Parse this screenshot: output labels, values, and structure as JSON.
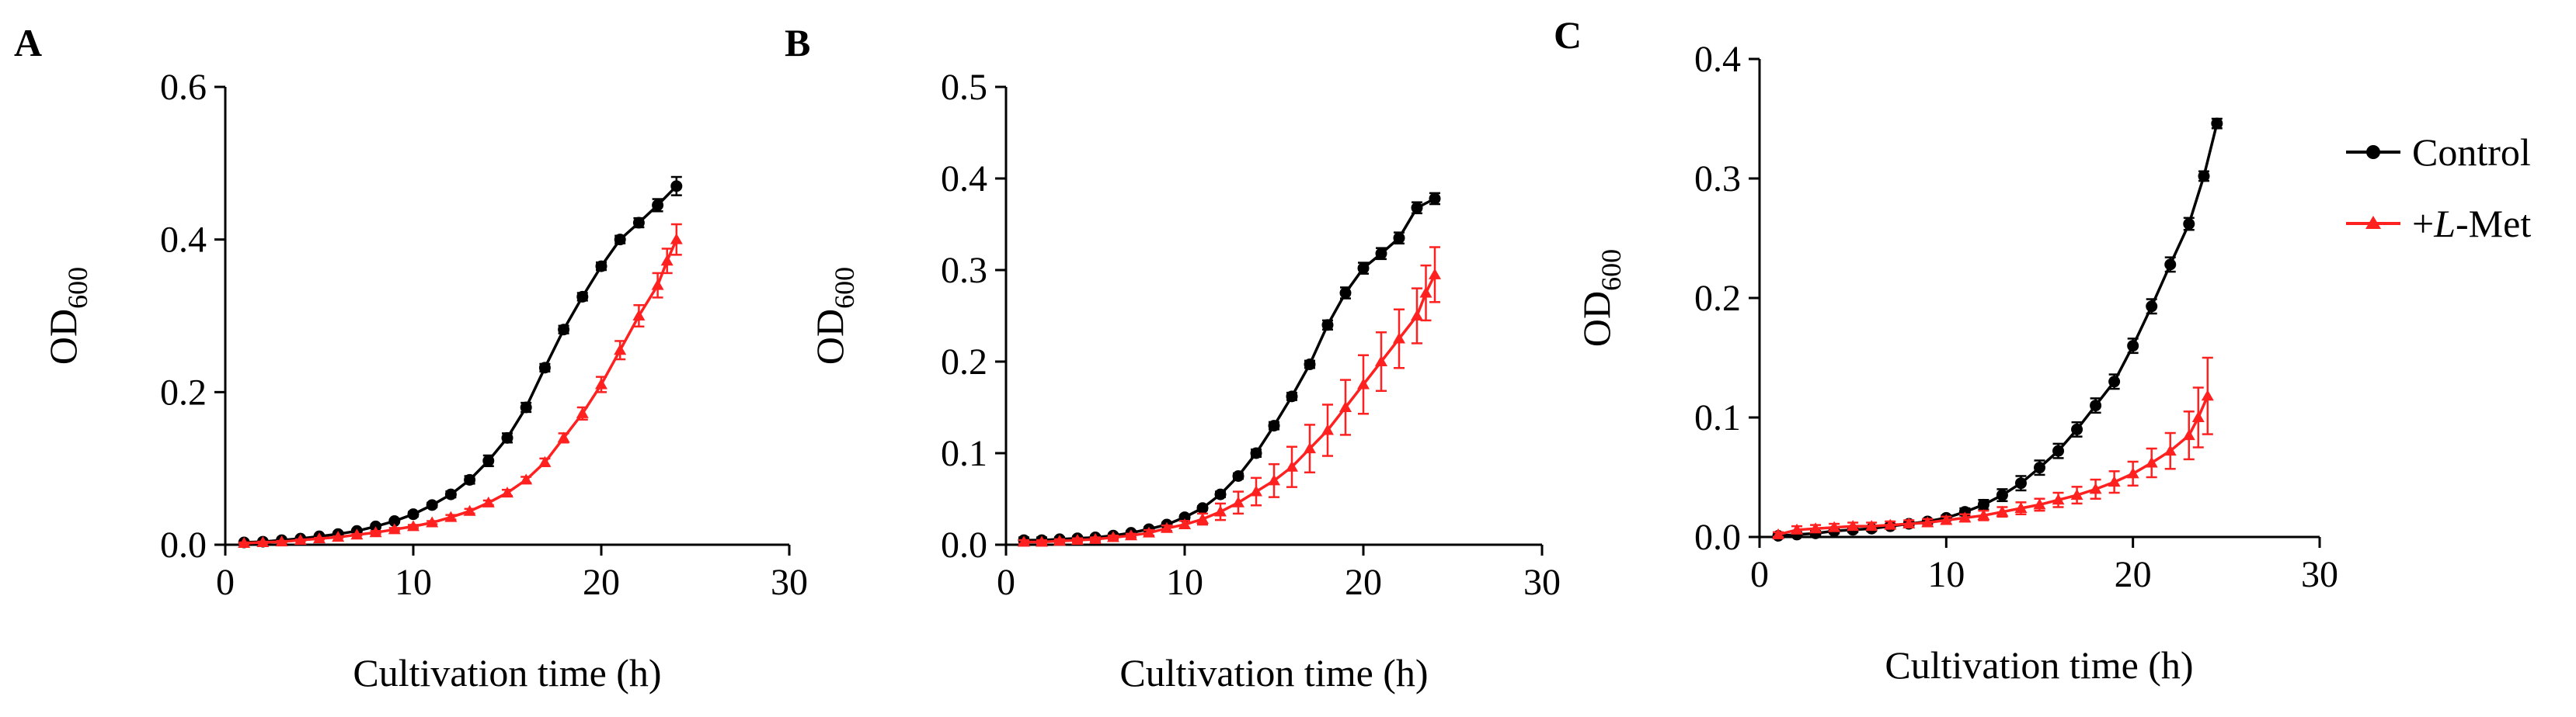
{
  "legend": {
    "items": [
      {
        "label_pre": "Control",
        "label_italic": "",
        "label_post": "",
        "color": "#000000",
        "marker": "circle"
      },
      {
        "label_pre": "+",
        "label_italic": "L",
        "label_post": "-Met",
        "color": "#ff2020",
        "marker": "triangle"
      }
    ]
  },
  "chart_data": [
    {
      "type": "line",
      "panel": "A",
      "xlabel": "Cultivation time (h)",
      "ylabel": {
        "main": "OD",
        "sub": "600"
      },
      "xlim": [
        0,
        30
      ],
      "ylim": [
        0,
        0.6
      ],
      "xticks": [
        0,
        10,
        20,
        30
      ],
      "yticks": [
        0.0,
        0.2,
        0.4,
        0.6
      ],
      "x_tick_labels": [
        "0",
        "10",
        "20",
        "30"
      ],
      "y_tick_labels": [
        "0.0",
        "0.2",
        "0.4",
        "0.6"
      ],
      "x": [
        1,
        2,
        3,
        4,
        5,
        6,
        7,
        8,
        9,
        10,
        11,
        12,
        13,
        14,
        15,
        16,
        17,
        18,
        19,
        20,
        21,
        22,
        23,
        24
      ],
      "series": [
        {
          "name": "Control",
          "values": [
            0.003,
            0.004,
            0.006,
            0.008,
            0.011,
            0.014,
            0.018,
            0.024,
            0.031,
            0.04,
            0.052,
            0.066,
            0.085,
            0.11,
            0.14,
            0.18,
            0.232,
            0.282,
            0.325,
            0.365,
            0.4,
            0.422,
            0.445,
            0.47
          ],
          "errors": [
            0.001,
            0.001,
            0.001,
            0.001,
            0.001,
            0.002,
            0.002,
            0.002,
            0.002,
            0.003,
            0.003,
            0.004,
            0.005,
            0.007,
            0.006,
            0.006,
            0.005,
            0.005,
            0.005,
            0.005,
            0.005,
            0.006,
            0.008,
            0.012
          ]
        },
        {
          "name": "+L-Met",
          "values": [
            0.002,
            0.003,
            0.004,
            0.006,
            0.008,
            0.01,
            0.013,
            0.016,
            0.02,
            0.024,
            0.029,
            0.036,
            0.044,
            0.055,
            0.068,
            0.085,
            0.108,
            0.14,
            0.172,
            0.21,
            0.255,
            0.3,
            0.34,
            0.372,
            0.4
          ],
          "errors": [
            0.001,
            0.001,
            0.001,
            0.001,
            0.001,
            0.001,
            0.001,
            0.002,
            0.002,
            0.002,
            0.002,
            0.003,
            0.003,
            0.003,
            0.004,
            0.004,
            0.005,
            0.006,
            0.008,
            0.01,
            0.012,
            0.014,
            0.016,
            0.016,
            0.02
          ],
          "x": [
            1,
            2,
            3,
            4,
            5,
            6,
            7,
            8,
            9,
            10,
            11,
            12,
            13,
            14,
            15,
            16,
            17,
            18,
            19,
            20,
            21,
            22,
            23,
            23.5,
            24
          ]
        }
      ]
    },
    {
      "type": "line",
      "panel": "B",
      "xlabel": "Cultivation time (h)",
      "ylabel": {
        "main": "OD",
        "sub": "600"
      },
      "xlim": [
        0,
        30
      ],
      "ylim": [
        0,
        0.5
      ],
      "xticks": [
        0,
        10,
        20,
        30
      ],
      "yticks": [
        0.0,
        0.1,
        0.2,
        0.3,
        0.4,
        0.5
      ],
      "x_tick_labels": [
        "0",
        "10",
        "20",
        "30"
      ],
      "y_tick_labels": [
        "0.0",
        "0.1",
        "0.2",
        "0.3",
        "0.4",
        "0.5"
      ],
      "x": [
        1,
        2,
        3,
        4,
        5,
        6,
        7,
        8,
        9,
        10,
        11,
        12,
        13,
        14,
        15,
        16,
        17,
        18,
        19,
        20,
        21,
        22,
        23,
        24
      ],
      "series": [
        {
          "name": "Control",
          "values": [
            0.005,
            0.005,
            0.006,
            0.007,
            0.008,
            0.01,
            0.013,
            0.017,
            0.022,
            0.03,
            0.04,
            0.055,
            0.075,
            0.1,
            0.13,
            0.162,
            0.197,
            0.24,
            0.275,
            0.302,
            0.318,
            0.335,
            0.368,
            0.378
          ],
          "errors": [
            0.003,
            0.003,
            0.002,
            0.002,
            0.002,
            0.002,
            0.002,
            0.002,
            0.002,
            0.002,
            0.002,
            0.003,
            0.003,
            0.004,
            0.004,
            0.004,
            0.004,
            0.005,
            0.006,
            0.006,
            0.006,
            0.006,
            0.006,
            0.006
          ]
        },
        {
          "name": "+L-Met",
          "values": [
            0.003,
            0.003,
            0.004,
            0.005,
            0.006,
            0.008,
            0.01,
            0.013,
            0.018,
            0.022,
            0.028,
            0.036,
            0.046,
            0.058,
            0.07,
            0.085,
            0.105,
            0.125,
            0.15,
            0.175,
            0.2,
            0.225,
            0.25,
            0.275,
            0.295
          ],
          "errors": [
            0.002,
            0.002,
            0.002,
            0.002,
            0.002,
            0.002,
            0.002,
            0.003,
            0.003,
            0.004,
            0.006,
            0.009,
            0.012,
            0.015,
            0.018,
            0.022,
            0.026,
            0.028,
            0.03,
            0.032,
            0.032,
            0.032,
            0.03,
            0.03,
            0.03
          ],
          "x": [
            1,
            2,
            3,
            4,
            5,
            6,
            7,
            8,
            9,
            10,
            11,
            12,
            13,
            14,
            15,
            16,
            17,
            18,
            19,
            20,
            21,
            22,
            23,
            23.5,
            24
          ]
        }
      ]
    },
    {
      "type": "line",
      "panel": "C",
      "xlabel": "Cultivation time (h)",
      "ylabel": {
        "main": "OD",
        "sub": "600"
      },
      "xlim": [
        0,
        30
      ],
      "ylim": [
        0,
        0.4
      ],
      "xticks": [
        0,
        10,
        20,
        30
      ],
      "yticks": [
        0.0,
        0.1,
        0.2,
        0.3,
        0.4
      ],
      "x_tick_labels": [
        "0",
        "10",
        "20",
        "30"
      ],
      "y_tick_labels": [
        "0.0",
        "0.1",
        "0.2",
        "0.3",
        "0.4"
      ],
      "x": [
        1,
        2,
        3,
        4,
        5,
        6,
        7,
        8,
        9,
        10,
        11,
        12,
        13,
        14,
        15,
        16,
        17,
        18,
        19,
        20,
        21,
        22,
        23,
        24
      ],
      "series": [
        {
          "name": "Control",
          "values": [
            0.001,
            0.002,
            0.003,
            0.005,
            0.006,
            0.007,
            0.009,
            0.011,
            0.013,
            0.016,
            0.021,
            0.027,
            0.035,
            0.045,
            0.058,
            0.072,
            0.09,
            0.11,
            0.13,
            0.16,
            0.193,
            0.228,
            0.262,
            0.302,
            0.346
          ],
          "errors": [
            0.001,
            0.002,
            0.002,
            0.002,
            0.002,
            0.002,
            0.002,
            0.002,
            0.002,
            0.002,
            0.003,
            0.004,
            0.005,
            0.006,
            0.006,
            0.006,
            0.006,
            0.006,
            0.006,
            0.006,
            0.006,
            0.006,
            0.005,
            0.004,
            0.004
          ],
          "x": [
            1,
            2,
            3,
            4,
            5,
            6,
            7,
            8,
            9,
            10,
            11,
            12,
            13,
            14,
            15,
            16,
            17,
            18,
            19,
            20,
            21,
            22,
            23,
            23.8,
            24.5
          ]
        },
        {
          "name": "+L-Met",
          "values": [
            0.002,
            0.006,
            0.007,
            0.008,
            0.009,
            0.009,
            0.01,
            0.011,
            0.012,
            0.014,
            0.016,
            0.018,
            0.021,
            0.024,
            0.027,
            0.031,
            0.035,
            0.04,
            0.046,
            0.053,
            0.062,
            0.072,
            0.085,
            0.1,
            0.118
          ],
          "errors": [
            0.002,
            0.003,
            0.003,
            0.003,
            0.003,
            0.003,
            0.003,
            0.003,
            0.003,
            0.003,
            0.003,
            0.004,
            0.004,
            0.005,
            0.005,
            0.006,
            0.007,
            0.008,
            0.009,
            0.01,
            0.012,
            0.015,
            0.02,
            0.025,
            0.032
          ],
          "x": [
            1,
            2,
            3,
            4,
            5,
            6,
            7,
            8,
            9,
            10,
            11,
            12,
            13,
            14,
            15,
            16,
            17,
            18,
            19,
            20,
            21,
            22,
            23,
            23.5,
            24
          ]
        }
      ]
    }
  ]
}
